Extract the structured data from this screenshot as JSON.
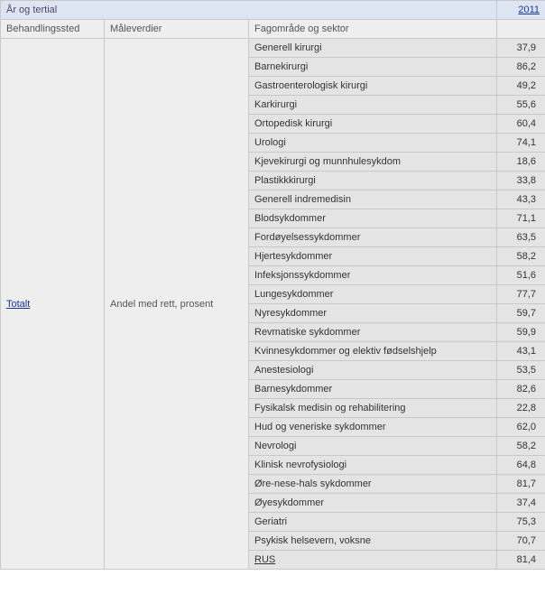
{
  "header": {
    "year_label": "År og tertial",
    "year_value": "2011",
    "col1": "Behandlingssted",
    "col2": "Måleverdier",
    "col3": "Fagområde og sektor"
  },
  "rowspan_labels": {
    "totalt": "Totalt",
    "andel": "Andel med rett, prosent"
  },
  "colors": {
    "top_header_bg": "#dde5f2",
    "sub_header_bg": "#eeeeee",
    "row_bg": "#e4e4e4",
    "border": "#c9c9c9",
    "link": "#1a3399"
  },
  "rows": [
    {
      "label": "Generell kirurgi",
      "value": "37,9"
    },
    {
      "label": "Barnekirurgi",
      "value": "86,2"
    },
    {
      "label": "Gastroenterologisk kirurgi",
      "value": "49,2"
    },
    {
      "label": "Karkirurgi",
      "value": "55,6"
    },
    {
      "label": "Ortopedisk kirurgi",
      "value": "60,4"
    },
    {
      "label": "Urologi",
      "value": "74,1"
    },
    {
      "label": "Kjevekirurgi og munnhulesykdom",
      "value": "18,6"
    },
    {
      "label": "Plastikkkirurgi",
      "value": "33,8"
    },
    {
      "label": "Generell indremedisin",
      "value": "43,3"
    },
    {
      "label": "Blodsykdommer",
      "value": "71,1"
    },
    {
      "label": "Fordøyelsessykdommer",
      "value": "63,5"
    },
    {
      "label": "Hjertesykdommer",
      "value": "58,2"
    },
    {
      "label": "Infeksjonssykdommer",
      "value": "51,6"
    },
    {
      "label": "Lungesykdommer",
      "value": "77,7"
    },
    {
      "label": "Nyresykdommer",
      "value": "59,7"
    },
    {
      "label": "Revmatiske sykdommer",
      "value": "59,9"
    },
    {
      "label": "Kvinnesykdommer og elektiv fødselshjelp",
      "value": "43,1"
    },
    {
      "label": "Anestesiologi",
      "value": "53,5"
    },
    {
      "label": "Barnesykdommer",
      "value": "82,6"
    },
    {
      "label": "Fysikalsk medisin og rehabilitering",
      "value": "22,8"
    },
    {
      "label": "Hud og veneriske sykdommer",
      "value": "62,0"
    },
    {
      "label": "Nevrologi",
      "value": "58,2"
    },
    {
      "label": "Klinisk nevrofysiologi",
      "value": "64,8"
    },
    {
      "label": "Øre-nese-hals sykdommer",
      "value": "81,7"
    },
    {
      "label": "Øyesykdommer",
      "value": "37,4"
    },
    {
      "label": "Geriatri",
      "value": "75,3"
    },
    {
      "label": "Psykisk helsevern, voksne",
      "value": "70,7"
    },
    {
      "label": "RUS",
      "value": "81,4",
      "rus": true
    }
  ]
}
